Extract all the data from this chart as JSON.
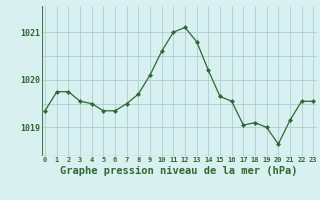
{
  "x": [
    0,
    1,
    2,
    3,
    4,
    5,
    6,
    7,
    8,
    9,
    10,
    11,
    12,
    13,
    14,
    15,
    16,
    17,
    18,
    19,
    20,
    21,
    22,
    23
  ],
  "y": [
    1019.35,
    1019.75,
    1019.75,
    1019.55,
    1019.5,
    1019.35,
    1019.35,
    1019.5,
    1019.7,
    1020.1,
    1020.6,
    1021.0,
    1021.1,
    1020.8,
    1020.2,
    1019.65,
    1019.55,
    1019.05,
    1019.1,
    1019.0,
    1018.65,
    1019.15,
    1019.55,
    1019.55
  ],
  "line_color": "#2d6a2d",
  "marker_color": "#2d6a2d",
  "bg_color": "#d8f0f0",
  "grid_color": "#aacfcf",
  "axis_color": "#4a7a4a",
  "xlabel": "Graphe pression niveau de la mer (hPa)",
  "xlabel_fontsize": 7.5,
  "tick_label_color": "#2d6a2d",
  "ytick_labels": [
    "1021",
    "1020",
    "1019"
  ],
  "ytick_values": [
    1021.0,
    1020.0,
    1019.0
  ],
  "ylim_min": 1018.4,
  "ylim_max": 1021.55,
  "xlim_min": -0.3,
  "xlim_max": 23.3
}
